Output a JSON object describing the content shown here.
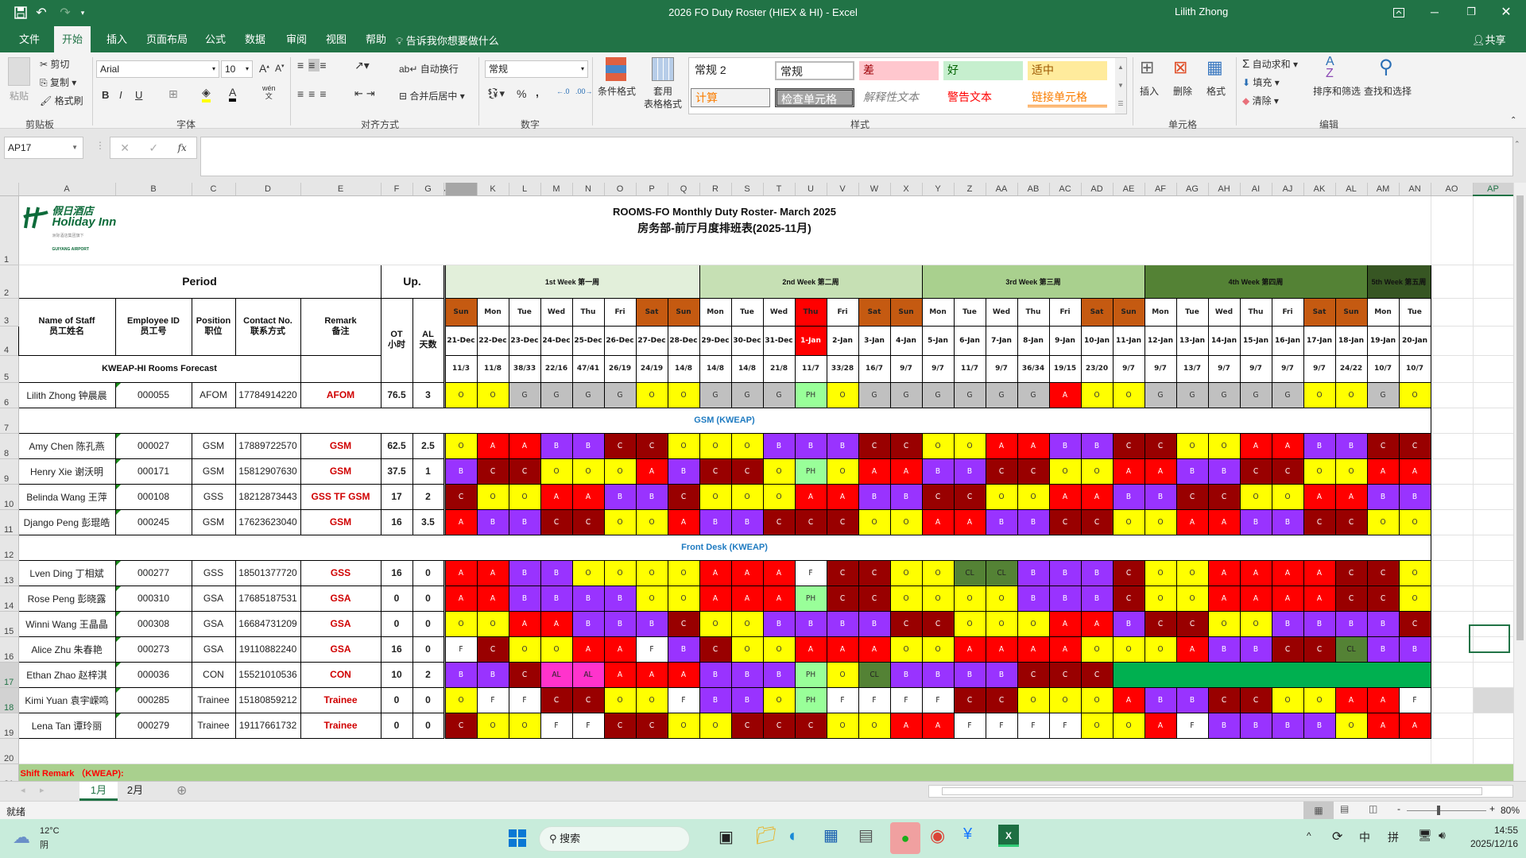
{
  "window": {
    "title": "2026 FO Duty Roster (HIEX & HI)  -  Excel",
    "user": "Lilith Zhong"
  },
  "ribbon": {
    "tabs": [
      "文件",
      "开始",
      "插入",
      "页面布局",
      "公式",
      "数据",
      "审阅",
      "视图",
      "帮助"
    ],
    "active_tab": "开始",
    "tell_me": "告诉我你想要做什么",
    "share": "共享",
    "clipboard": {
      "paste": "粘贴",
      "cut": "剪切",
      "copy": "复制",
      "format_painter": "格式刷",
      "label": "剪贴板"
    },
    "font": {
      "name": "Arial",
      "size": "10",
      "bold": "B",
      "italic": "I",
      "underline": "U",
      "phonetic": "wén",
      "label": "字体"
    },
    "alignment": {
      "wrap": "自动换行",
      "merge": "合并后居中",
      "label": "对齐方式"
    },
    "number": {
      "format": "常规",
      "percent": "%",
      "comma": ",",
      "label": "数字"
    },
    "styles": {
      "conditional": "条件格式",
      "table_format_1": "套用",
      "table_format_2": "表格格式",
      "label": "样式",
      "gallery": [
        "常规 2",
        "常规",
        "差",
        "好",
        "适中",
        "计算",
        "检查单元格",
        "解释性文本",
        "警告文本",
        "链接单元格"
      ]
    },
    "cells": {
      "insert": "插入",
      "delete": "删除",
      "format": "格式",
      "label": "单元格"
    },
    "editing": {
      "autosum": "自动求和",
      "fill": "填充",
      "clear": "清除",
      "sort": "排序和筛选",
      "find": "查找和选择",
      "label": "编辑"
    }
  },
  "formula_bar": {
    "name_box": "AP17",
    "content": ""
  },
  "sheet": {
    "columns": [
      "A",
      "B",
      "C",
      "D",
      "E",
      "F",
      "G",
      "J",
      "K",
      "L",
      "M",
      "N",
      "O",
      "P",
      "Q",
      "R",
      "S",
      "T",
      "U",
      "V",
      "W",
      "X",
      "Y",
      "Z",
      "AA",
      "AB",
      "AC",
      "AD",
      "AE",
      "AF",
      "AG",
      "AH",
      "AI",
      "AJ",
      "AK",
      "AL",
      "AM",
      "AN",
      "AO",
      "AP"
    ],
    "selected_cell": "AP17",
    "logo": {
      "cn": "假日酒店",
      "en": "Holiday Inn",
      "sub": "洲际酒店集团旗下",
      "location": "GUIYANG AIRPORT"
    },
    "title_en": "ROOMS-FO Monthly Duty Roster- March 2025",
    "title_cn": "房务部-前厅月度排班表(2025-11月)",
    "period": "Period",
    "up": "Up.",
    "headers": {
      "name": "Name of Staff\n员工姓名",
      "id": "Employee ID\n员工号",
      "position": "Position\n职位",
      "contact": "Contact No.\n联系方式",
      "remark": "Remark\n备注",
      "ot": "OT\n小时",
      "al": "AL\n天数"
    },
    "forecast_label": "KWEAP-HI Rooms Forecast",
    "weeks": [
      {
        "label": "1st Week 第一周",
        "span": 8,
        "color": "#e2efda"
      },
      {
        "label": "2nd Week 第二周",
        "span": 7,
        "color": "#c6e0b4"
      },
      {
        "label": "3rd Week 第三周",
        "span": 7,
        "color": "#a9d08e"
      },
      {
        "label": "4th Week 第四周",
        "span": 7,
        "color": "#548235"
      },
      {
        "label": "5th Week 第五周",
        "span": 2,
        "color": "#375623"
      }
    ],
    "days": [
      "Sun",
      "Mon",
      "Tue",
      "Wed",
      "Thu",
      "Fri",
      "Sat",
      "Sun",
      "Mon",
      "Tue",
      "Wed",
      "Thu",
      "Fri",
      "Sat",
      "Sun",
      "Mon",
      "Tue",
      "Wed",
      "Thu",
      "Fri",
      "Sat",
      "Sun",
      "Mon",
      "Tue",
      "Wed",
      "Thu",
      "Fri",
      "Sat",
      "Sun",
      "Mon",
      "Tue"
    ],
    "dates": [
      "21-Dec",
      "22-Dec",
      "23-Dec",
      "24-Dec",
      "25-Dec",
      "26-Dec",
      "27-Dec",
      "28-Dec",
      "29-Dec",
      "30-Dec",
      "31-Dec",
      "1-Jan",
      "2-Jan",
      "3-Jan",
      "4-Jan",
      "5-Jan",
      "6-Jan",
      "7-Jan",
      "8-Jan",
      "9-Jan",
      "10-Jan",
      "11-Jan",
      "12-Jan",
      "13-Jan",
      "14-Jan",
      "15-Jan",
      "16-Jan",
      "17-Jan",
      "18-Jan",
      "19-Jan",
      "20-Jan"
    ],
    "holiday_dates": [
      "1-Jan"
    ],
    "forecast": [
      "11/3",
      "11/8",
      "38/33",
      "22/16",
      "47/41",
      "26/19",
      "24/19",
      "14/8",
      "14/8",
      "14/8",
      "21/8",
      "11/7",
      "33/28",
      "16/7",
      "9/7",
      "9/7",
      "11/7",
      "9/7",
      "36/34",
      "19/15",
      "23/20",
      "9/7",
      "9/7",
      "13/7",
      "9/7",
      "9/7",
      "9/7",
      "9/7",
      "24/22",
      "10/7",
      "10/7"
    ],
    "colors": {
      "weekend": "#c55a11",
      "holiday": "#ff0000"
    },
    "shift_colors": {
      "O": {
        "bg": "#ffff00",
        "fg": "#333"
      },
      "A": {
        "bg": "#ff0000",
        "fg": "#fff"
      },
      "B": {
        "bg": "#9933ff",
        "fg": "#fff"
      },
      "C": {
        "bg": "#990000",
        "fg": "#fff"
      },
      "G": {
        "bg": "#c0c0c0",
        "fg": "#333"
      },
      "PH": {
        "bg": "#99ff99",
        "fg": "#333"
      },
      "F": {
        "bg": "#ffffff",
        "fg": "#222"
      },
      "CL": {
        "bg": "#548235",
        "fg": "#222"
      },
      "AL": {
        "bg": "#ff33cc",
        "fg": "#222"
      }
    },
    "sections": {
      "gsm": "GSM (KWEAP)",
      "front_desk": "Front Desk (KWEAP)"
    },
    "staff": [
      {
        "row": 6,
        "name": "Lilith Zhong 钟晨晨",
        "id": "000055",
        "position": "AFOM",
        "contact": "17784914220",
        "remark": "AFOM",
        "ot": "76.5",
        "al": "3",
        "shifts": [
          "O",
          "O",
          "G",
          "G",
          "G",
          "G",
          "O",
          "O",
          "G",
          "G",
          "G",
          "PH",
          "O",
          "G",
          "G",
          "G",
          "G",
          "G",
          "G",
          "A",
          "O",
          "O",
          "G",
          "G",
          "G",
          "G",
          "G",
          "O",
          "O",
          "G",
          "O"
        ]
      },
      {
        "row": 8,
        "name": "Amy Chen 陈孔燕",
        "id": "000027",
        "position": "GSM",
        "contact": "17889722570",
        "remark": "GSM",
        "ot": "62.5",
        "al": "2.5",
        "shifts": [
          "O",
          "A",
          "A",
          "B",
          "B",
          "C",
          "C",
          "O",
          "O",
          "O",
          "B",
          "B",
          "B",
          "C",
          "C",
          "O",
          "O",
          "A",
          "A",
          "B",
          "B",
          "C",
          "C",
          "O",
          "O",
          "A",
          "A",
          "B",
          "B",
          "C",
          "C"
        ]
      },
      {
        "row": 9,
        "name": "Henry Xie 谢沃明",
        "id": "000171",
        "position": "GSM",
        "contact": "15812907630",
        "remark": "GSM",
        "ot": "37.5",
        "al": "1",
        "shifts": [
          "B",
          "C",
          "C",
          "O",
          "O",
          "O",
          "A",
          "B",
          "C",
          "C",
          "O",
          "PH",
          "O",
          "A",
          "A",
          "B",
          "B",
          "C",
          "C",
          "O",
          "O",
          "A",
          "A",
          "B",
          "B",
          "C",
          "C",
          "O",
          "O",
          "A",
          "A"
        ]
      },
      {
        "row": 10,
        "name": "Belinda Wang 王萍",
        "id": "000108",
        "position": "GSS",
        "contact": "18212873443",
        "remark": "GSS TF GSM",
        "ot": "17",
        "al": "2",
        "shifts": [
          "C",
          "O",
          "O",
          "A",
          "A",
          "B",
          "B",
          "C",
          "O",
          "O",
          "O",
          "A",
          "A",
          "B",
          "B",
          "C",
          "C",
          "O",
          "O",
          "A",
          "A",
          "B",
          "B",
          "C",
          "C",
          "O",
          "O",
          "A",
          "A",
          "B",
          "B"
        ]
      },
      {
        "row": 11,
        "name": "Django Peng 彭琨皓",
        "id": "000245",
        "position": "GSM",
        "contact": "17623623040",
        "remark": "GSM",
        "ot": "16",
        "al": "3.5",
        "shifts": [
          "A",
          "B",
          "B",
          "C",
          "C",
          "O",
          "O",
          "A",
          "B",
          "B",
          "C",
          "C",
          "C",
          "O",
          "O",
          "A",
          "A",
          "B",
          "B",
          "C",
          "C",
          "O",
          "O",
          "A",
          "A",
          "B",
          "B",
          "C",
          "C",
          "O",
          "O"
        ]
      },
      {
        "row": 13,
        "name": "Lven Ding 丁相斌",
        "id": "000277",
        "position": "GSS",
        "contact": "18501377720",
        "remark": "GSS",
        "ot": "16",
        "al": "0",
        "shifts": [
          "A",
          "A",
          "B",
          "B",
          "O",
          "O",
          "O",
          "O",
          "A",
          "A",
          "A",
          "F",
          "C",
          "C",
          "O",
          "O",
          "CL",
          "CL",
          "B",
          "B",
          "B",
          "C",
          "O",
          "O",
          "A",
          "A",
          "A",
          "A",
          "C",
          "C",
          "O"
        ]
      },
      {
        "row": 14,
        "name": "Rose Peng 彭晓露",
        "id": "000310",
        "position": "GSA",
        "contact": "17685187531",
        "remark": "GSA",
        "ot": "0",
        "al": "0",
        "shifts": [
          "A",
          "A",
          "B",
          "B",
          "B",
          "B",
          "O",
          "O",
          "A",
          "A",
          "A",
          "PH",
          "C",
          "C",
          "O",
          "O",
          "O",
          "O",
          "B",
          "B",
          "B",
          "C",
          "O",
          "O",
          "A",
          "A",
          "A",
          "A",
          "C",
          "C",
          "O"
        ]
      },
      {
        "row": 15,
        "name": "Winni Wang 王晶晶",
        "id": "000308",
        "position": "GSA",
        "contact": "16684731209",
        "remark": "GSA",
        "ot": "0",
        "al": "0",
        "shifts": [
          "O",
          "O",
          "A",
          "A",
          "B",
          "B",
          "B",
          "C",
          "O",
          "O",
          "B",
          "B",
          "B",
          "B",
          "C",
          "C",
          "O",
          "O",
          "O",
          "A",
          "A",
          "B",
          "C",
          "C",
          "O",
          "O",
          "B",
          "B",
          "B",
          "B",
          "C"
        ]
      },
      {
        "row": 16,
        "name": "Alice Zhu 朱春艳",
        "id": "000273",
        "position": "GSA",
        "contact": "19110882240",
        "remark": "GSA",
        "ot": "16",
        "al": "0",
        "shifts": [
          "F",
          "C",
          "O",
          "O",
          "A",
          "A",
          "F",
          "B",
          "C",
          "O",
          "O",
          "A",
          "A",
          "A",
          "O",
          "O",
          "A",
          "A",
          "A",
          "A",
          "O",
          "O",
          "O",
          "A",
          "B",
          "B",
          "C",
          "C",
          "CL",
          "B",
          "B"
        ]
      },
      {
        "row": 17,
        "name": "Ethan Zhao 赵梓淇",
        "id": "000036",
        "position": "CON",
        "contact": "15521010536",
        "remark": "CON",
        "ot": "10",
        "al": "2",
        "shifts": [
          "B",
          "B",
          "C",
          "AL",
          "AL",
          "A",
          "A",
          "A",
          "B",
          "B",
          "B",
          "PH",
          "O",
          "CL",
          "B",
          "B",
          "B",
          "B",
          "C",
          "C",
          "C"
        ],
        "merged_fill": "#00b050"
      },
      {
        "row": 18,
        "name": "Kimi Yuan 袁宇嵘鸣",
        "id": "000285",
        "position": "Trainee",
        "contact": "15180859212",
        "remark": "Trainee",
        "ot": "0",
        "al": "0",
        "shifts": [
          "O",
          "F",
          "F",
          "C",
          "C",
          "O",
          "O",
          "F",
          "B",
          "B",
          "O",
          "PH",
          "F",
          "F",
          "F",
          "F",
          "C",
          "C",
          "O",
          "O",
          "O",
          "A",
          "B",
          "B",
          "C",
          "C",
          "O",
          "O",
          "A",
          "A",
          "F"
        ]
      },
      {
        "row": 19,
        "name": "Lena Tan 谭玲丽",
        "id": "000279",
        "position": "Trainee",
        "contact": "19117661732",
        "remark": "Trainee",
        "ot": "0",
        "al": "0",
        "shifts": [
          "C",
          "O",
          "O",
          "F",
          "F",
          "C",
          "C",
          "O",
          "O",
          "C",
          "C",
          "C",
          "O",
          "O",
          "A",
          "A",
          "F",
          "F",
          "F",
          "F",
          "O",
          "O",
          "A",
          "F",
          "B",
          "B",
          "B",
          "B",
          "O",
          "A",
          "A"
        ]
      }
    ],
    "shift_remark": "Shift Remark （KWEAP):"
  },
  "sheet_tabs": {
    "tabs": [
      "1月",
      "2月"
    ],
    "active": "1月"
  },
  "status": {
    "ready": "就绪",
    "zoom": "80%"
  },
  "taskbar": {
    "temp": "12°C",
    "weather": "阴",
    "search": "搜索",
    "ime_1": "中",
    "ime_2": "拼",
    "time": "14:55",
    "date": "2025/12/16"
  }
}
